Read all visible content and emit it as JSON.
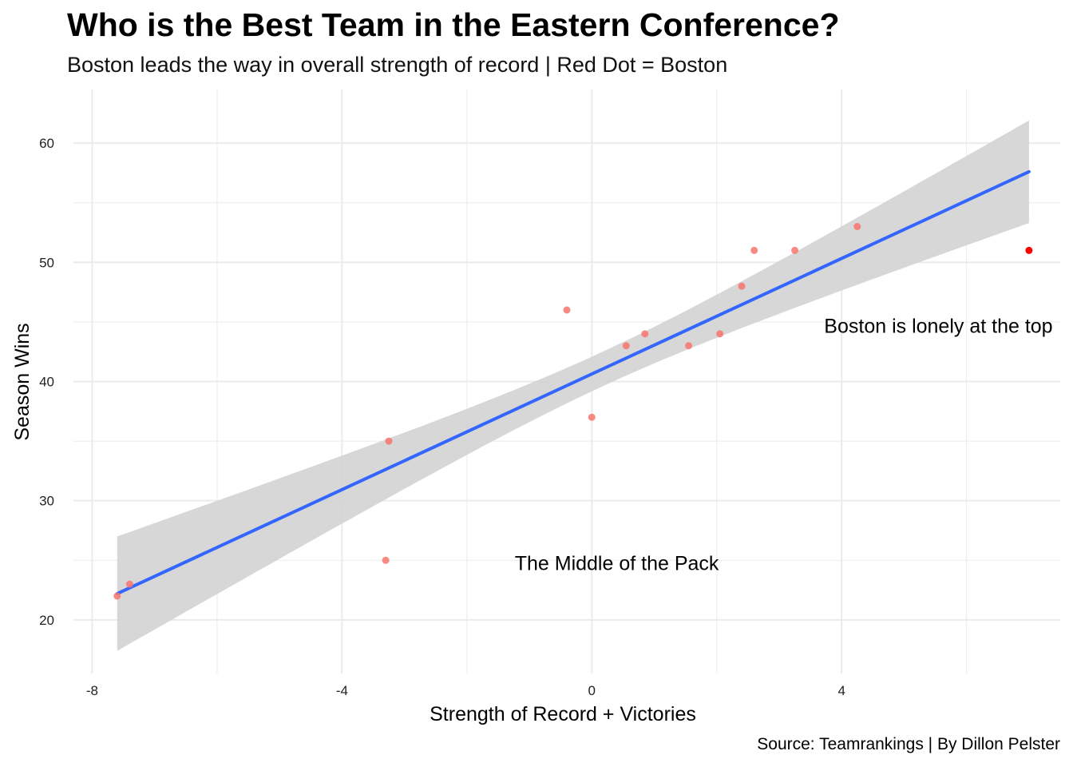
{
  "chart_data": {
    "type": "scatter",
    "title": "Who is the Best Team in the Eastern Conference?",
    "subtitle": "Boston leads the way in overall strength of record | Red Dot = Boston",
    "caption": "Source: Teamrankings | By Dillon Pelster",
    "xlabel": "Strength of Record + Victories",
    "ylabel": "Season Wins",
    "xlim": [
      -8.3,
      7.5
    ],
    "ylim": [
      15.5,
      64.5
    ],
    "xticks": [
      -8,
      -4,
      0,
      4
    ],
    "yticks": [
      20,
      30,
      40,
      50,
      60
    ],
    "grid": true,
    "colors": {
      "points": "#f8766d",
      "highlight": "#ff0000",
      "fit_line": "#3366ff",
      "ribbon": "#d3d3d3",
      "grid": "#ebebeb"
    },
    "series": [
      {
        "x": [
          -7.6,
          -7.4,
          -3.3,
          -3.25,
          -0.4,
          0.0,
          0.55,
          0.85,
          1.55,
          2.05,
          2.4,
          2.6,
          3.25,
          4.25
        ],
        "y": [
          22,
          23,
          25,
          35,
          46,
          37,
          43,
          44,
          43,
          44,
          48,
          51,
          51,
          53
        ]
      },
      {
        "x": [
          7.0
        ],
        "y": [
          51
        ]
      }
    ],
    "fit": {
      "method": "lm",
      "x": [
        -7.6,
        7.0
      ],
      "y": [
        22.2,
        57.6
      ],
      "ribbon_upper": [
        27.0,
        61.9
      ],
      "ribbon_lower": [
        17.4,
        53.2
      ]
    },
    "annotations": [
      {
        "text": "Boston is lonely at the top",
        "x": 5.55,
        "y": 44.7
      },
      {
        "text": "The Middle of the Pack",
        "x": 0.4,
        "y": 24.8
      }
    ]
  }
}
